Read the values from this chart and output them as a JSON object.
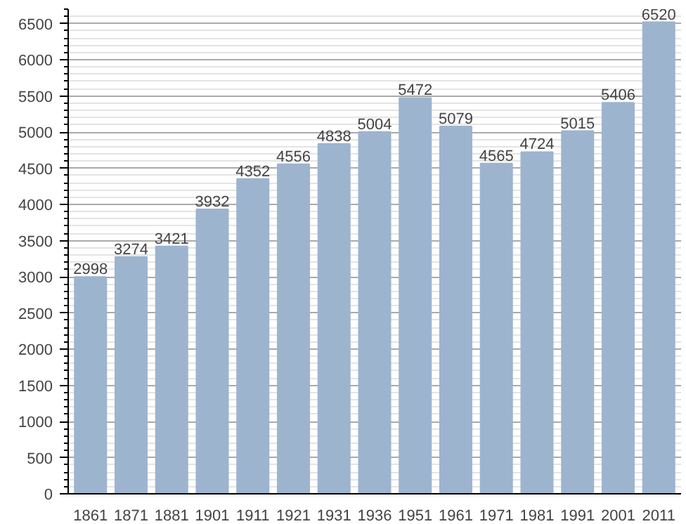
{
  "chart_data": {
    "type": "bar",
    "categories": [
      "1861",
      "1871",
      "1881",
      "1901",
      "1911",
      "1921",
      "1931",
      "1936",
      "1951",
      "1961",
      "1971",
      "1981",
      "1991",
      "2001",
      "2011"
    ],
    "values": [
      2998,
      3274,
      3421,
      3932,
      4352,
      4556,
      4838,
      5004,
      5472,
      5079,
      4565,
      4724,
      5015,
      5406,
      6520
    ],
    "color": "#9db4cf",
    "ylim": [
      0,
      6700
    ],
    "yticks": [
      0,
      500,
      1000,
      1500,
      2000,
      2500,
      3000,
      3500,
      4000,
      4500,
      5000,
      5500,
      6000,
      6500
    ],
    "grid": "y",
    "data_labels": true
  }
}
